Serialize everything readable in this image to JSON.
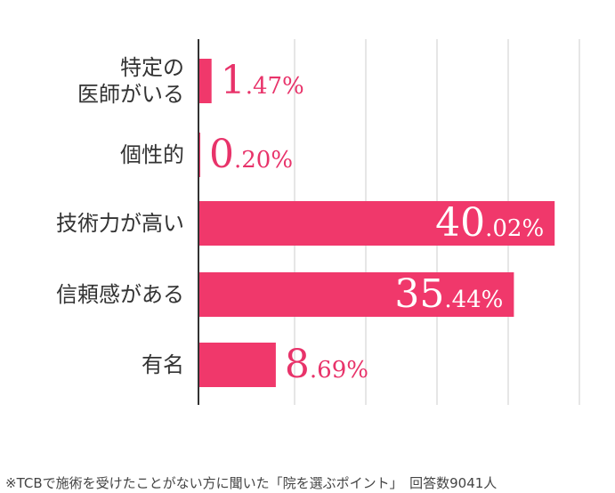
{
  "chart_data": {
    "type": "bar",
    "orientation": "horizontal",
    "categories": [
      [
        "特定の",
        "医師がいる"
      ],
      [
        "個性的"
      ],
      [
        "技術力が高い"
      ],
      [
        "信頼感がある"
      ],
      [
        "有名"
      ]
    ],
    "values": [
      1.47,
      0.2,
      40.02,
      35.44,
      8.69
    ],
    "value_labels": [
      {
        "int": "1",
        "rest": ".47%"
      },
      {
        "int": "0",
        "rest": ".20%"
      },
      {
        "int": "40",
        "rest": ".02%"
      },
      {
        "int": "35",
        "rest": ".44%"
      },
      {
        "int": "8",
        "rest": ".69%"
      }
    ],
    "xlim": [
      0,
      43
    ],
    "grid": true,
    "bar_color": "#f0386b",
    "label_color_outside": "#e8336a",
    "label_color_inside": "#ffffff"
  },
  "footnote": "※TCBで施術を受けたことがない方に聞いた「院を選ぶポイント」　回答数9041人"
}
